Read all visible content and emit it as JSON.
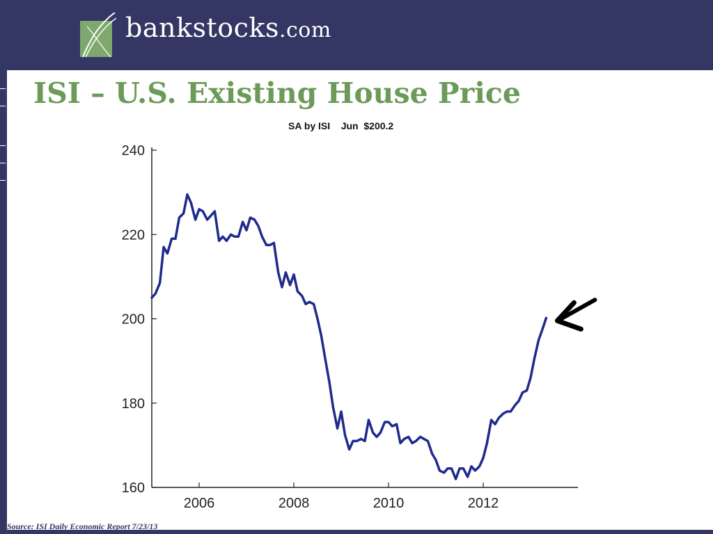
{
  "header": {
    "logo_text": "bankstocks",
    "logo_suffix": ".com"
  },
  "slide": {
    "title": "ISI – U.S. Existing House Price",
    "subtitle": "SA by ISI    Jun  $200.2",
    "source": "Source: ISI Daily Economic Report 7/23/13"
  },
  "colors": {
    "header_bg": "#343764",
    "title": "#6b9a59",
    "line": "#1f2a8c",
    "annotation_arrow": "#000000"
  },
  "chart_data": {
    "type": "line",
    "title": "ISI – U.S. Existing House Price",
    "subtitle": "SA by ISI    Jun  $200.2",
    "xlabel": "",
    "ylabel": "",
    "xlim": [
      2005.0,
      2014.0
    ],
    "ylim": [
      160,
      240
    ],
    "x_ticks": [
      2006,
      2008,
      2010,
      2012
    ],
    "x_tick_labels": [
      "2006",
      "2008",
      "2010",
      "2012"
    ],
    "y_ticks": [
      160,
      180,
      200,
      220,
      240
    ],
    "y_tick_labels": [
      "160",
      "180",
      "200",
      "220",
      "240"
    ],
    "grid": false,
    "annotation": "arrow pointing to latest value",
    "series": [
      {
        "values": [
          [
            2005.0,
            205
          ],
          [
            2005.08,
            206
          ],
          [
            2005.17,
            208.5
          ],
          [
            2005.25,
            217
          ],
          [
            2005.33,
            215.5
          ],
          [
            2005.42,
            219
          ],
          [
            2005.5,
            219
          ],
          [
            2005.58,
            224
          ],
          [
            2005.67,
            225
          ],
          [
            2005.75,
            229.5
          ],
          [
            2005.83,
            227.5
          ],
          [
            2005.92,
            223.5
          ],
          [
            2006.0,
            226
          ],
          [
            2006.08,
            225.5
          ],
          [
            2006.17,
            223.5
          ],
          [
            2006.25,
            224.5
          ],
          [
            2006.33,
            225.5
          ],
          [
            2006.42,
            218.5
          ],
          [
            2006.5,
            219.5
          ],
          [
            2006.58,
            218.5
          ],
          [
            2006.67,
            220
          ],
          [
            2006.75,
            219.5
          ],
          [
            2006.83,
            219.5
          ],
          [
            2006.92,
            223
          ],
          [
            2007.0,
            221
          ],
          [
            2007.08,
            224
          ],
          [
            2007.17,
            223.5
          ],
          [
            2007.25,
            222
          ],
          [
            2007.33,
            219.5
          ],
          [
            2007.42,
            217.5
          ],
          [
            2007.5,
            217.5
          ],
          [
            2007.58,
            218
          ],
          [
            2007.67,
            211
          ],
          [
            2007.75,
            207.5
          ],
          [
            2007.83,
            211
          ],
          [
            2007.92,
            208
          ],
          [
            2008.0,
            210.5
          ],
          [
            2008.08,
            206.5
          ],
          [
            2008.17,
            205.5
          ],
          [
            2008.25,
            203.5
          ],
          [
            2008.33,
            204
          ],
          [
            2008.42,
            203.5
          ],
          [
            2008.5,
            200
          ],
          [
            2008.58,
            196
          ],
          [
            2008.67,
            190
          ],
          [
            2008.75,
            185
          ],
          [
            2008.83,
            179
          ],
          [
            2008.92,
            174
          ],
          [
            2009.0,
            178
          ],
          [
            2009.08,
            172.5
          ],
          [
            2009.17,
            169
          ],
          [
            2009.25,
            171
          ],
          [
            2009.33,
            171
          ],
          [
            2009.42,
            171.5
          ],
          [
            2009.5,
            171
          ],
          [
            2009.58,
            176
          ],
          [
            2009.67,
            173
          ],
          [
            2009.75,
            172
          ],
          [
            2009.83,
            173
          ],
          [
            2009.92,
            175.5
          ],
          [
            2010.0,
            175.5
          ],
          [
            2010.08,
            174.5
          ],
          [
            2010.17,
            175
          ],
          [
            2010.25,
            170.5
          ],
          [
            2010.33,
            171.5
          ],
          [
            2010.42,
            172
          ],
          [
            2010.5,
            170.5
          ],
          [
            2010.58,
            171
          ],
          [
            2010.67,
            172
          ],
          [
            2010.75,
            171.5
          ],
          [
            2010.83,
            171
          ],
          [
            2010.92,
            168
          ],
          [
            2011.0,
            166.5
          ],
          [
            2011.08,
            164
          ],
          [
            2011.17,
            163.5
          ],
          [
            2011.25,
            164.5
          ],
          [
            2011.33,
            164.5
          ],
          [
            2011.42,
            162
          ],
          [
            2011.5,
            164.5
          ],
          [
            2011.58,
            164.5
          ],
          [
            2011.67,
            162.5
          ],
          [
            2011.75,
            165
          ],
          [
            2011.83,
            164
          ],
          [
            2011.92,
            165
          ],
          [
            2012.0,
            167
          ],
          [
            2012.08,
            170.5
          ],
          [
            2012.17,
            176
          ],
          [
            2012.25,
            175
          ],
          [
            2012.33,
            176.5
          ],
          [
            2012.42,
            177.5
          ],
          [
            2012.5,
            178
          ],
          [
            2012.58,
            178
          ],
          [
            2012.67,
            179.5
          ],
          [
            2012.75,
            180.5
          ],
          [
            2012.83,
            182.5
          ],
          [
            2012.92,
            183
          ],
          [
            2013.0,
            186
          ],
          [
            2013.08,
            190.5
          ],
          [
            2013.17,
            195
          ],
          [
            2013.25,
            197.5
          ],
          [
            2013.33,
            200.2
          ]
        ]
      }
    ]
  }
}
